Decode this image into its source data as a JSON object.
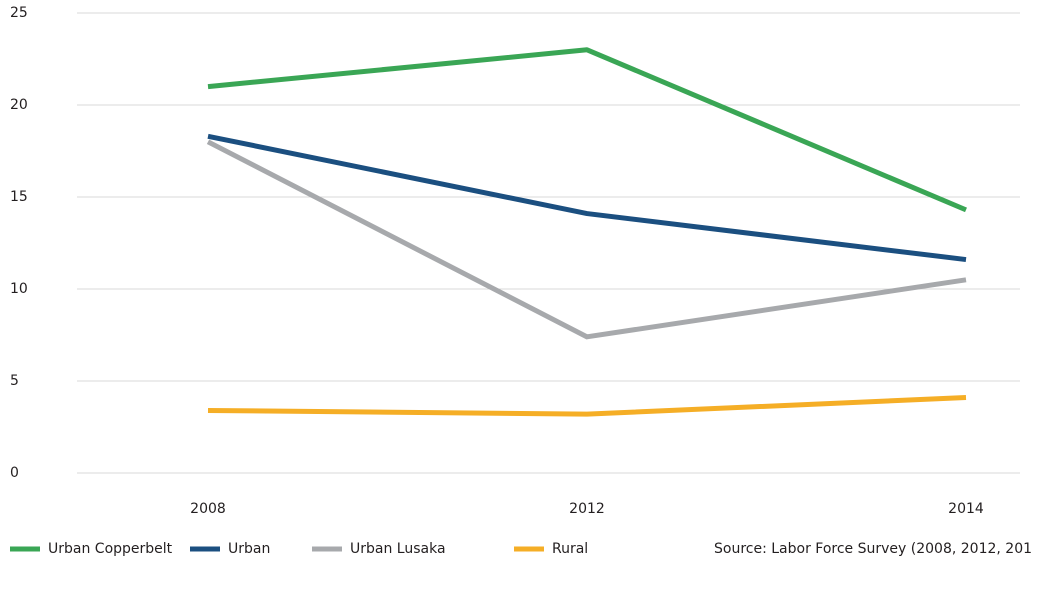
{
  "chart_data": {
    "type": "line",
    "categories": [
      "2008",
      "2012",
      "2014"
    ],
    "series": [
      {
        "name": "Urban Copperbelt",
        "color": "#3aa655",
        "values": [
          21.0,
          23.0,
          14.3
        ]
      },
      {
        "name": "Urban",
        "color": "#1b4f80",
        "values": [
          18.3,
          14.1,
          11.6
        ]
      },
      {
        "name": "Urban Lusaka",
        "color": "#a7a9ac",
        "values": [
          18.0,
          7.4,
          10.5
        ]
      },
      {
        "name": "Rural",
        "color": "#f5ae26",
        "values": [
          3.4,
          3.2,
          4.1
        ]
      }
    ],
    "ylim": [
      0,
      25
    ],
    "yticks": [
      0,
      5,
      10,
      15,
      20,
      25
    ],
    "grid": true,
    "legend": "bottom",
    "source": "Source: Labor Force Survey (2008, 2012, 201"
  }
}
